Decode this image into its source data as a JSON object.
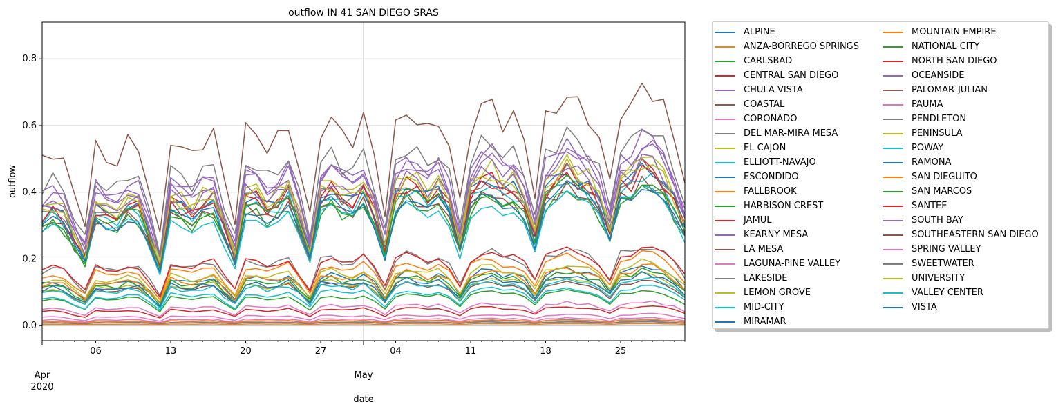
{
  "chart_data": {
    "type": "line",
    "title": "outflow IN 41 SAN DIEGO SRAS",
    "xlabel": "date",
    "ylabel": "outflow",
    "ylim": [
      -0.045,
      0.91
    ],
    "grid": true,
    "legend_position": "outside-right",
    "x_start": "2020-04-01",
    "x_end": "2020-05-31",
    "x_major_ticks": [
      {
        "date": "2020-04-01",
        "label": "Apr",
        "sublabel": "2020"
      },
      {
        "date": "2020-05-01",
        "label": "May",
        "sublabel": ""
      }
    ],
    "x_minor_ticks": [
      {
        "date": "2020-04-06",
        "label": "06"
      },
      {
        "date": "2020-04-13",
        "label": "13"
      },
      {
        "date": "2020-04-20",
        "label": "20"
      },
      {
        "date": "2020-04-27",
        "label": "27"
      },
      {
        "date": "2020-05-04",
        "label": "04"
      },
      {
        "date": "2020-05-11",
        "label": "11"
      },
      {
        "date": "2020-05-18",
        "label": "18"
      },
      {
        "date": "2020-05-25",
        "label": "25"
      }
    ],
    "y_ticks": [
      0.0,
      0.2,
      0.4,
      0.6,
      0.8
    ],
    "y_tick_labels": [
      "0.0",
      "0.2",
      "0.4",
      "0.6",
      "0.8"
    ],
    "series": [
      {
        "name": "ALPINE",
        "color": "#1f77b4",
        "level": 0.15
      },
      {
        "name": "ANZA-BORREGO SPRINGS",
        "color": "#ff7f0e",
        "level": 0.005
      },
      {
        "name": "CARLSBAD",
        "color": "#2ca02c",
        "level": 0.35
      },
      {
        "name": "CENTRAL SAN DIEGO",
        "color": "#d62728",
        "level": 0.4
      },
      {
        "name": "CHULA VISTA",
        "color": "#9467bd",
        "level": 0.45
      },
      {
        "name": "COASTAL",
        "color": "#8c564b",
        "level": 0.12
      },
      {
        "name": "CORONADO",
        "color": "#e377c2",
        "level": 0.03
      },
      {
        "name": "DEL MAR-MIRA MESA",
        "color": "#7f7f7f",
        "level": 0.4
      },
      {
        "name": "EL CAJON",
        "color": "#bcbd22",
        "level": 0.43
      },
      {
        "name": "ELLIOTT-NAVAJO",
        "color": "#17becf",
        "level": 0.38
      },
      {
        "name": "ESCONDIDO",
        "color": "#1f77b4",
        "level": 0.4
      },
      {
        "name": "FALLBROOK",
        "color": "#ff7f0e",
        "level": 0.18
      },
      {
        "name": "HARBISON CREST",
        "color": "#2ca02c",
        "level": 0.09
      },
      {
        "name": "JAMUL",
        "color": "#d62728",
        "level": 0.05
      },
      {
        "name": "KEARNY MESA",
        "color": "#9467bd",
        "level": 0.42
      },
      {
        "name": "LA MESA",
        "color": "#8c564b",
        "level": 0.36
      },
      {
        "name": "LAGUNA-PINE VALLEY",
        "color": "#e377c2",
        "level": 0.02
      },
      {
        "name": "LAKESIDE",
        "color": "#7f7f7f",
        "level": 0.2
      },
      {
        "name": "LEMON GROVE",
        "color": "#bcbd22",
        "level": 0.13
      },
      {
        "name": "MID-CITY",
        "color": "#17becf",
        "level": 0.34
      },
      {
        "name": "MIRAMAR",
        "color": "#1f77b4",
        "level": 0.015
      },
      {
        "name": "MOUNTAIN EMPIRE",
        "color": "#ff7f0e",
        "level": 0.015
      },
      {
        "name": "NATIONAL CITY",
        "color": "#2ca02c",
        "level": 0.14
      },
      {
        "name": "NORTH SAN DIEGO",
        "color": "#d62728",
        "level": 0.39
      },
      {
        "name": "OCEANSIDE",
        "color": "#9467bd",
        "level": 0.46
      },
      {
        "name": "PALOMAR-JULIAN",
        "color": "#8c564b",
        "level": 0.01
      },
      {
        "name": "PAUMA",
        "color": "#e377c2",
        "level": 0.01
      },
      {
        "name": "PENDLETON",
        "color": "#7f7f7f",
        "level": 0.01
      },
      {
        "name": "PENINSULA",
        "color": "#bcbd22",
        "level": 0.41
      },
      {
        "name": "POWAY",
        "color": "#17becf",
        "level": 0.12
      },
      {
        "name": "RAMONA",
        "color": "#1f77b4",
        "level": 0.13
      },
      {
        "name": "SAN DIEGUITO",
        "color": "#ff7f0e",
        "level": 0.15
      },
      {
        "name": "SAN MARCOS",
        "color": "#2ca02c",
        "level": 0.37
      },
      {
        "name": "SANTEE",
        "color": "#d62728",
        "level": 0.2
      },
      {
        "name": "SOUTH BAY",
        "color": "#9467bd",
        "level": 0.47
      },
      {
        "name": "SOUTHEASTERN SAN DIEGO",
        "color": "#8c564b",
        "level": 0.6
      },
      {
        "name": "SPRING VALLEY",
        "color": "#e377c2",
        "level": 0.06
      },
      {
        "name": "SWEETWATER",
        "color": "#7f7f7f",
        "level": 0.5
      },
      {
        "name": "UNIVERSITY",
        "color": "#bcbd22",
        "level": 0.16
      },
      {
        "name": "VALLEY CENTER",
        "color": "#17becf",
        "level": 0.1
      },
      {
        "name": "VISTA",
        "color": "#1f77b4",
        "level": 0.36
      }
    ]
  }
}
